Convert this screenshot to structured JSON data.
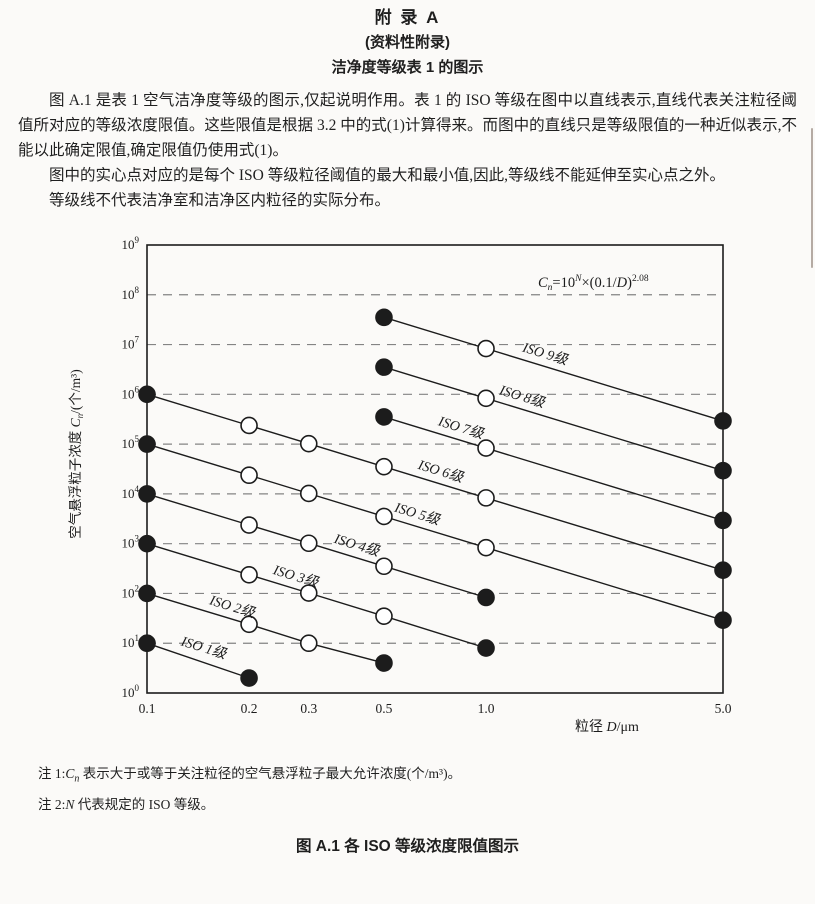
{
  "header": {
    "appendix_title": "附 录 A",
    "subtitle": "(资料性附录)",
    "section_title": "洁净度等级表 1 的图示"
  },
  "paragraphs": [
    "图 A.1 是表 1 空气洁净度等级的图示,仅起说明作用。表 1 的 ISO 等级在图中以直线表示,直线代表关注粒径阈值所对应的等级浓度限值。这些限值是根据 3.2 中的式(1)计算得来。而图中的直线只是等级限值的一种近似表示,不能以此确定限值,确定限值仍使用式(1)。",
    "图中的实心点对应的是每个 ISO 等级粒径阈值的最大和最小值,因此,等级线不能延伸至实心点之外。",
    "等级线不代表洁净室和洁净区内粒径的实际分布。"
  ],
  "chart_data": {
    "type": "line",
    "title": "",
    "xlabel": "粒径 D/μm",
    "ylabel": "空气悬浮粒子浓度 Cn/(个/m³)",
    "xlabel_parts": {
      "text1": "粒径 ",
      "var": "D",
      "text2": "/μm"
    },
    "ylabel_parts": {
      "text1": "空气悬浮粒子浓度 ",
      "var": "C",
      "var_sub": "n",
      "text2": "/(个/m³)"
    },
    "formula": "Cn=10^N×(0.1/D)^2.08",
    "formula_parts": {
      "var1": "C",
      "var1_sub": "n",
      "eq": "=10",
      "sup1": "N",
      "mul": "×(0.1/",
      "var2": "D",
      "close": ")",
      "sup2": "2.08"
    },
    "x_axis": {
      "scale": "log",
      "range": [
        0.1,
        5.0
      ],
      "ticks": [
        {
          "v": 0.1,
          "label": "0.1"
        },
        {
          "v": 0.2,
          "label": "0.2"
        },
        {
          "v": 0.3,
          "label": "0.3"
        },
        {
          "v": 0.5,
          "label": "0.5"
        },
        {
          "v": 1.0,
          "label": "1.0"
        },
        {
          "v": 5.0,
          "label": "5.0"
        }
      ]
    },
    "y_axis": {
      "scale": "log",
      "range_exponents": [
        0,
        9
      ],
      "tick_base": "10",
      "grid_exponents": [
        1,
        2,
        3,
        4,
        5,
        6,
        7,
        8
      ]
    },
    "slope_exponent": 2.08,
    "marker_rule": "line endpoints are filled dots (class limits), intermediate thresholds are open circles",
    "series": [
      {
        "name": "ISO 1级",
        "N": 1,
        "label_at": 0.122,
        "points": [
          [
            0.1,
            10
          ],
          [
            0.2,
            2
          ]
        ]
      },
      {
        "name": "ISO 2级",
        "N": 2,
        "label_at": 0.148,
        "points": [
          [
            0.1,
            100
          ],
          [
            0.2,
            24
          ],
          [
            0.3,
            10
          ],
          [
            0.5,
            4
          ]
        ]
      },
      {
        "name": "ISO 3级",
        "N": 3,
        "label_at": 0.228,
        "points": [
          [
            0.1,
            1000
          ],
          [
            0.2,
            237
          ],
          [
            0.3,
            102
          ],
          [
            0.5,
            35
          ],
          [
            1.0,
            8
          ]
        ]
      },
      {
        "name": "ISO 4级",
        "N": 4,
        "label_at": 0.345,
        "points": [
          [
            0.1,
            10000
          ],
          [
            0.2,
            2370
          ],
          [
            0.3,
            1020
          ],
          [
            0.5,
            352
          ],
          [
            1.0,
            83
          ]
        ]
      },
      {
        "name": "ISO 5级",
        "N": 5,
        "label_at": 0.52,
        "points": [
          [
            0.1,
            100000
          ],
          [
            0.2,
            23700
          ],
          [
            0.3,
            10200
          ],
          [
            0.5,
            3520
          ],
          [
            1.0,
            832
          ],
          [
            5.0,
            29
          ]
        ]
      },
      {
        "name": "ISO 6级",
        "N": 6,
        "label_at": 0.61,
        "points": [
          [
            0.1,
            1000000
          ],
          [
            0.2,
            237000
          ],
          [
            0.3,
            102000
          ],
          [
            0.5,
            35200
          ],
          [
            1.0,
            8320
          ],
          [
            5.0,
            293
          ]
        ]
      },
      {
        "name": "ISO 7级",
        "N": 7,
        "label_at": 0.7,
        "points": [
          [
            0.5,
            352000
          ],
          [
            1.0,
            83200
          ],
          [
            5.0,
            2930
          ]
        ]
      },
      {
        "name": "ISO 8级",
        "N": 8,
        "label_at": 1.06,
        "points": [
          [
            0.5,
            3520000
          ],
          [
            1.0,
            832000
          ],
          [
            5.0,
            29300
          ]
        ]
      },
      {
        "name": "ISO 9级",
        "N": 9,
        "label_at": 1.24,
        "points": [
          [
            0.5,
            35200000
          ],
          [
            1.0,
            8320000
          ],
          [
            5.0,
            293000
          ]
        ]
      }
    ]
  },
  "notes": [
    {
      "label": "注 1:",
      "var": "C",
      "var_sub": "n",
      "text": " 表示大于或等于关注粒径的空气悬浮粒子最大允许浓度(个/m³)。"
    },
    {
      "label": "注 2:",
      "var": "N",
      "var_sub": "",
      "text": " 代表规定的 ISO 等级。"
    }
  ],
  "caption": "图 A.1 各 ISO 等级浓度限值图示",
  "colors": {
    "ink": "#1c1c1c",
    "grid": "#848484",
    "paper": "#fbfaf8"
  }
}
